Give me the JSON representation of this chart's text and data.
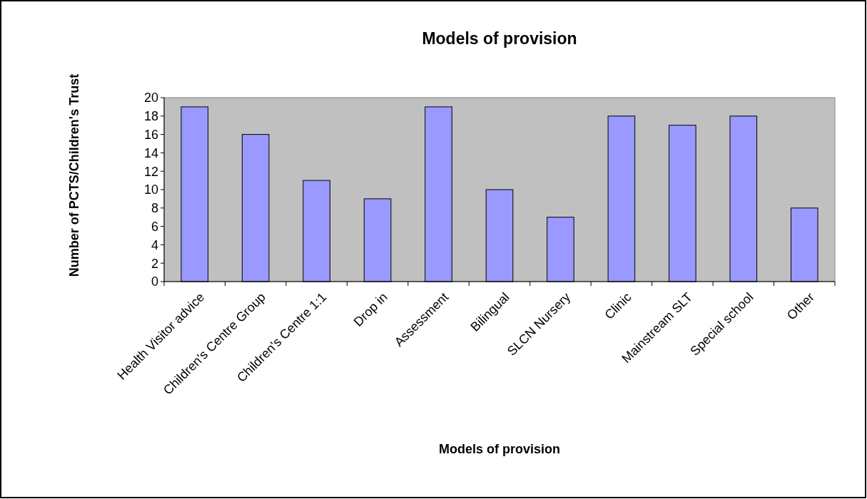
{
  "chart_data": {
    "type": "bar",
    "title": "Models of provision",
    "xlabel": "Models of provision",
    "ylabel": "Number of PCTS/Children's Trust",
    "categories": [
      "Health Visitor advice",
      "Children's Centre Group",
      "Children's Centre 1:1",
      "Drop in",
      "Assessment",
      "Bilingual",
      "SLCN Nursery",
      "Clinic",
      "Mainstream SLT",
      "Special school",
      "Other"
    ],
    "values": [
      19,
      16,
      11,
      9,
      19,
      10,
      7,
      18,
      17,
      18,
      8
    ],
    "color": "#9999ff",
    "ylim": [
      0,
      20
    ],
    "yticks": [
      0,
      2,
      4,
      6,
      8,
      10,
      12,
      14,
      16,
      18,
      20
    ],
    "grid": false
  }
}
